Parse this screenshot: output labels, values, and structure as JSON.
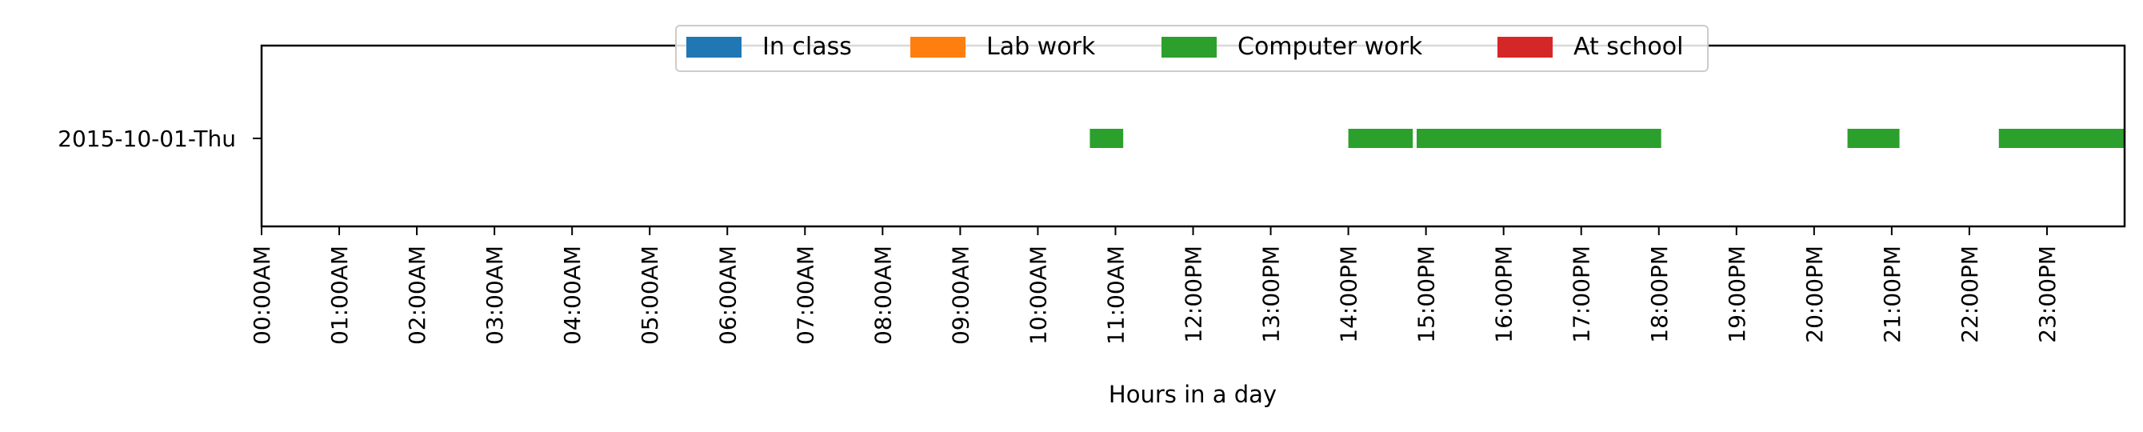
{
  "chart_data": {
    "type": "bar",
    "orientation": "horizontal-timeline",
    "xlabel": "Hours in a day",
    "ylabel": "",
    "xlim": [
      0,
      24
    ],
    "grid": false,
    "legend_placement": "top-center",
    "categories": [
      "2015-10-01-Thu"
    ],
    "x_ticks": [
      "00:00AM",
      "01:00AM",
      "02:00AM",
      "03:00AM",
      "04:00AM",
      "05:00AM",
      "06:00AM",
      "07:00AM",
      "08:00AM",
      "09:00AM",
      "10:00AM",
      "11:00AM",
      "12:00PM",
      "13:00PM",
      "14:00PM",
      "15:00PM",
      "16:00PM",
      "17:00PM",
      "18:00PM",
      "19:00PM",
      "20:00PM",
      "21:00PM",
      "22:00PM",
      "23:00PM"
    ],
    "series": [
      {
        "name": "In class",
        "color": "#1f77b4",
        "segments": []
      },
      {
        "name": "Lab work",
        "color": "#ff7f0e",
        "segments": []
      },
      {
        "name": "Computer work",
        "color": "#2ca02c",
        "segments": [
          {
            "category": "2015-10-01-Thu",
            "start": 10.67,
            "end": 11.1
          },
          {
            "category": "2015-10-01-Thu",
            "start": 14.0,
            "end": 14.83
          },
          {
            "category": "2015-10-01-Thu",
            "start": 14.88,
            "end": 18.03
          },
          {
            "category": "2015-10-01-Thu",
            "start": 20.43,
            "end": 21.1
          },
          {
            "category": "2015-10-01-Thu",
            "start": 22.38,
            "end": 24.0
          }
        ]
      },
      {
        "name": "At school",
        "color": "#d62728",
        "segments": []
      }
    ]
  }
}
